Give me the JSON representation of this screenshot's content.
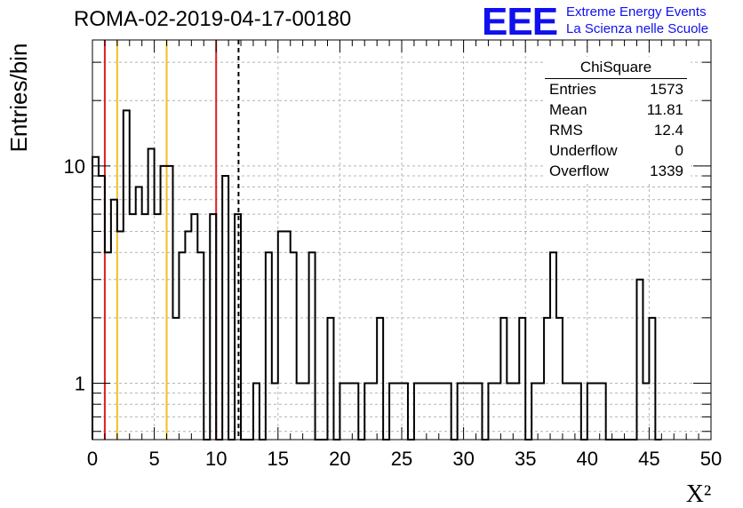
{
  "header": {
    "title": "ROMA-02-2019-04-17-00180",
    "logo": "EEE",
    "logo_line1": "Extreme Energy Events",
    "logo_line2": "La Scienza nelle Scuole"
  },
  "stats_box": {
    "title": "ChiSquare",
    "rows": [
      {
        "label": "Entries",
        "value": "1573"
      },
      {
        "label": "Mean",
        "value": "11.81"
      },
      {
        "label": "RMS",
        "value": "12.4"
      },
      {
        "label": "Underflow",
        "value": "0"
      },
      {
        "label": "Overflow",
        "value": "1339"
      }
    ]
  },
  "colors": {
    "histogram": "#000000",
    "red_lines": "#dd2020",
    "yellow_lines": "#f0c020",
    "mean_line": "#000000"
  },
  "chart_data": {
    "type": "histogram",
    "xlabel": "X²",
    "ylabel": "Entries/bin",
    "x_scale": "linear",
    "y_scale": "log",
    "xlim": [
      0,
      50
    ],
    "ylim": [
      0.55,
      38
    ],
    "xticks": [
      "0",
      "5",
      "10",
      "15",
      "20",
      "25",
      "30",
      "35",
      "40",
      "45",
      "50"
    ],
    "yticks": [
      "1",
      "10"
    ],
    "grid": true,
    "bin_width": 0.5,
    "bin_start": 0,
    "counts": [
      11,
      9,
      4,
      7,
      5,
      18,
      6,
      8,
      6,
      12,
      6,
      10,
      10,
      2,
      4,
      5,
      6,
      4,
      0,
      6,
      0,
      9,
      0,
      6,
      0,
      0,
      1,
      0,
      4,
      1,
      5,
      5,
      4,
      1,
      1,
      4,
      0,
      0,
      2,
      0,
      1,
      1,
      1,
      0,
      1,
      1,
      2,
      0,
      1,
      1,
      1,
      0,
      1,
      1,
      1,
      1,
      1,
      1,
      0,
      1,
      1,
      1,
      1,
      0,
      1,
      1,
      2,
      1,
      1,
      2,
      0,
      1,
      1,
      2,
      4,
      2,
      1,
      1,
      1,
      0,
      1,
      1,
      1,
      0,
      0,
      0,
      0,
      0,
      3,
      1,
      2,
      0
    ],
    "vertical_lines": [
      {
        "x": 1,
        "color": "red"
      },
      {
        "x": 10,
        "color": "red"
      },
      {
        "x": 2,
        "color": "yellow"
      },
      {
        "x": 6,
        "color": "yellow"
      },
      {
        "x": 11.81,
        "color": "black-dashed"
      }
    ]
  }
}
